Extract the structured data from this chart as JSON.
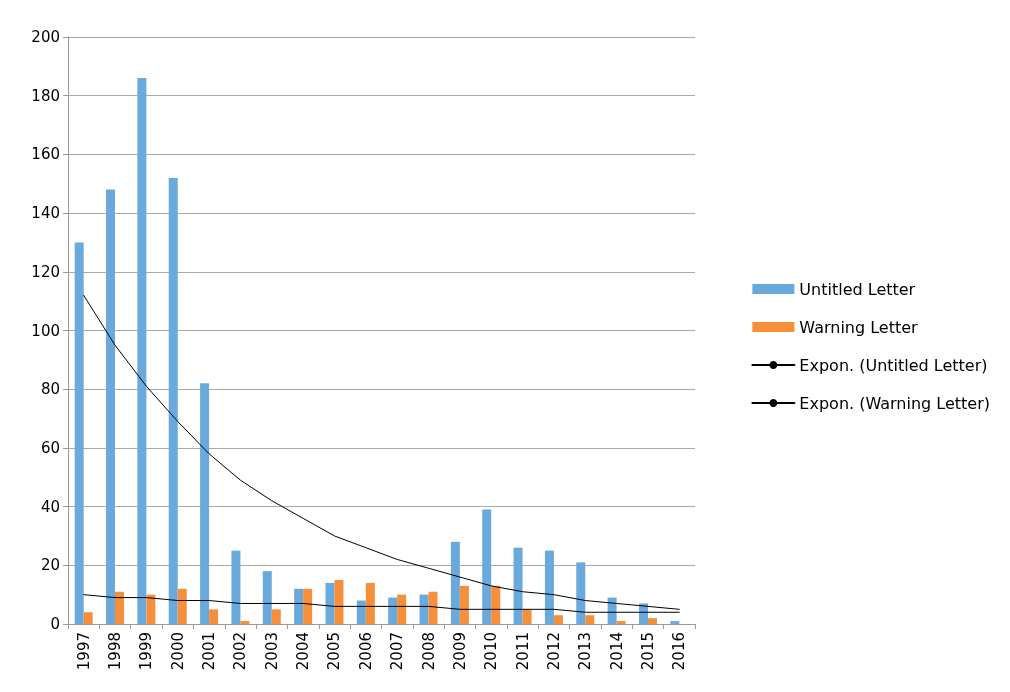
{
  "chart_data": {
    "type": "bar",
    "categories": [
      "1997",
      "1998",
      "1999",
      "2000",
      "2001",
      "2002",
      "2003",
      "2004",
      "2005",
      "2006",
      "2007",
      "2008",
      "2009",
      "2010",
      "2011",
      "2012",
      "2013",
      "2014",
      "2015",
      "2016"
    ],
    "series": [
      {
        "name": "Untitled Letter",
        "color": "#6aa9dc",
        "values": [
          130,
          148,
          186,
          152,
          82,
          25,
          18,
          12,
          14,
          8,
          9,
          10,
          28,
          39,
          26,
          25,
          21,
          9,
          7,
          1
        ]
      },
      {
        "name": "Warning Letter",
        "color": "#f58f3a",
        "values": [
          4,
          11,
          10,
          12,
          5,
          1,
          5,
          12,
          15,
          14,
          10,
          11,
          13,
          13,
          5,
          3,
          3,
          1,
          2,
          0
        ]
      },
      {
        "name": "Expon. (Untitled Letter)",
        "type": "line",
        "color": "#000000",
        "values": [
          112,
          95,
          81,
          69,
          58,
          49,
          42,
          36,
          30,
          26,
          22,
          19,
          16,
          13,
          11,
          10,
          8,
          7,
          6,
          5
        ]
      },
      {
        "name": "Expon. (Warning Letter)",
        "type": "line",
        "color": "#000000",
        "values": [
          10,
          9,
          9,
          8,
          8,
          7,
          7,
          7,
          6,
          6,
          6,
          6,
          5,
          5,
          5,
          5,
          4,
          4,
          4,
          4
        ]
      }
    ],
    "ylim": [
      0,
      200
    ],
    "yticks": [
      0,
      20,
      40,
      60,
      80,
      100,
      120,
      140,
      160,
      180,
      200
    ],
    "grid": "y",
    "legend": "right",
    "marker": "none",
    "line_style": "solid"
  }
}
